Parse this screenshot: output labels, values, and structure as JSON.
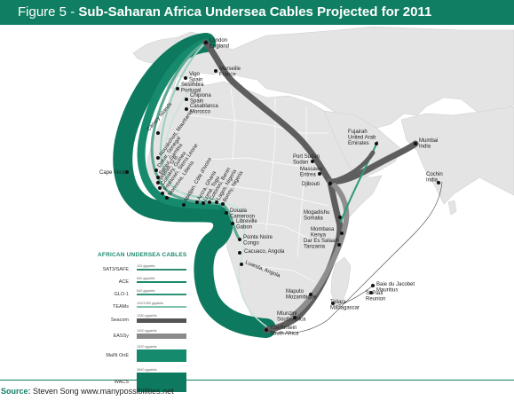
{
  "header": {
    "prefix": "Figure 5 - ",
    "title": "Sub-Saharan Africa Undersea Cables Projected for 2011"
  },
  "colors": {
    "header_bg": "#0f7e63",
    "ocean": "#ffffff",
    "land": "#e4e4e4",
    "teal": "#0f7e63",
    "dark_cable": "#5e5e5e",
    "light_cable": "#9a9a9a"
  },
  "places": [
    {
      "id": "london",
      "lines": [
        "London",
        "England"
      ]
    },
    {
      "id": "marseille",
      "lines": [
        "Marseille",
        "France"
      ]
    },
    {
      "id": "vigo",
      "lines": [
        "Vigo",
        "Spain"
      ]
    },
    {
      "id": "sesimbra",
      "lines": [
        "Sesimbra",
        "Portugal"
      ]
    },
    {
      "id": "chipiona",
      "lines": [
        "Chipiona",
        "Spain"
      ]
    },
    {
      "id": "casablanca",
      "lines": [
        "Casablanca",
        "Morocco"
      ]
    },
    {
      "id": "canary",
      "lines": [
        "Canary Islands"
      ]
    },
    {
      "id": "nouakchott",
      "lines": [
        "Nouakchott, Mauritania"
      ]
    },
    {
      "id": "dakar",
      "lines": [
        "Dakar, Senegal"
      ]
    },
    {
      "id": "banjul",
      "lines": [
        "Banjul, Gambia"
      ]
    },
    {
      "id": "bissau",
      "lines": [
        "Bissau, G.B."
      ]
    },
    {
      "id": "conakry",
      "lines": [
        "Conakry, Guinea"
      ]
    },
    {
      "id": "freetown",
      "lines": [
        "Freetown, Sierra Leone"
      ]
    },
    {
      "id": "monrovia",
      "lines": [
        "Monrovia, Liberia"
      ]
    },
    {
      "id": "abidjan",
      "lines": [
        "Abidjan, Côte d'Ivoire"
      ]
    },
    {
      "id": "accra",
      "lines": [
        "Accra, Ghana"
      ]
    },
    {
      "id": "lome",
      "lines": [
        "Lomé, Togo"
      ]
    },
    {
      "id": "cotonou",
      "lines": [
        "Cotonou, Benin"
      ]
    },
    {
      "id": "lagos",
      "lines": [
        "Lagos, Nigeria"
      ]
    },
    {
      "id": "bonny",
      "lines": [
        "Bonny, Nigeria"
      ]
    },
    {
      "id": "capeverde",
      "lines": [
        "Cape Verde"
      ]
    },
    {
      "id": "douala",
      "lines": [
        "Douala",
        "Cameroon"
      ]
    },
    {
      "id": "libreville",
      "lines": [
        "Libreville",
        "Gabon"
      ]
    },
    {
      "id": "pointenoire",
      "lines": [
        "Pointe Noire",
        "Congo"
      ]
    },
    {
      "id": "cacuaco",
      "lines": [
        "Cacuaco, Angola"
      ]
    },
    {
      "id": "luanda",
      "lines": [
        "Luanda, Angola"
      ]
    },
    {
      "id": "yzerfontein",
      "lines": [
        "Yzerfontein",
        "South Africa"
      ]
    },
    {
      "id": "portsudan",
      "lines": [
        "Port Sudan",
        "Sudan"
      ]
    },
    {
      "id": "massawa",
      "lines": [
        "Massawa",
        "Eritrea"
      ]
    },
    {
      "id": "djibouti",
      "lines": [
        "Djibouti"
      ]
    },
    {
      "id": "fujairah",
      "lines": [
        "Fujairah",
        "United Arab",
        "Emirates"
      ]
    },
    {
      "id": "mumbai",
      "lines": [
        "Mumbai",
        "India"
      ]
    },
    {
      "id": "cochin",
      "lines": [
        "Cochin",
        "India"
      ]
    },
    {
      "id": "mogadishu",
      "lines": [
        "Mogadishu",
        "Somalia"
      ]
    },
    {
      "id": "mombasa",
      "lines": [
        "Mombasa",
        "Kenya"
      ]
    },
    {
      "id": "daressalaam",
      "lines": [
        "Dar Es Salaam",
        "Tanzania"
      ]
    },
    {
      "id": "baiedujacobet",
      "lines": [
        "Baie du Jacobet",
        "Mauritius"
      ]
    },
    {
      "id": "stpaul",
      "lines": [
        "St Paul",
        "Reunion"
      ]
    },
    {
      "id": "toliara",
      "lines": [
        "Toliara",
        "Madagascar"
      ]
    },
    {
      "id": "maputo",
      "lines": [
        "Maputo",
        "Mozambique"
      ]
    },
    {
      "id": "mtunzini",
      "lines": [
        "Mtunzini",
        "South Africa"
      ]
    }
  ],
  "legend": {
    "title": "AFRICAN UNDERSEA CABLES",
    "items": [
      {
        "name": "SAT3/SAFE",
        "capacity": "120 gigabits",
        "color": "#2e8c73"
      },
      {
        "name": "ACE",
        "capacity": "640 gigabits",
        "color": "#1a8a6d"
      },
      {
        "name": "GLO-1",
        "capacity": "640 gigabits",
        "color": "#2d9478"
      },
      {
        "name": "TEAMs",
        "capacity": "120/1280 gigabits",
        "color": "#7fc2ad"
      },
      {
        "name": "Seacom",
        "capacity": "1280 gigabits",
        "color": "#555555"
      },
      {
        "name": "EASSy",
        "capacity": "1400 gigabits",
        "color": "#8a8a8a"
      },
      {
        "name": "MaIN OnE",
        "capacity": "1920 gigabits",
        "color": "#168a6c"
      },
      {
        "name": "WACS",
        "capacity": "3840 gigabits",
        "color": "#0d7a5f"
      }
    ]
  },
  "source": {
    "label": "Source:",
    "text": "Steven Song www.manypossibilities.net"
  }
}
